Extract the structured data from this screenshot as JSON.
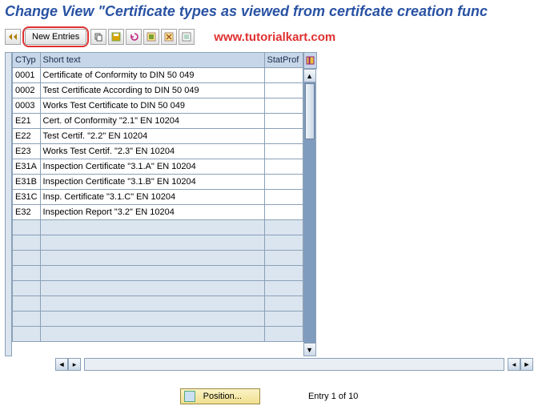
{
  "title": "Change View \"Certificate types as viewed from certifcate creation func",
  "toolbar": {
    "new_entries_label": "New Entries"
  },
  "watermark": "www.tutorialkart.com",
  "table": {
    "headers": {
      "ctyp": "CTyp",
      "short": "Short text",
      "stat": "StatProf"
    },
    "rows": [
      {
        "ctyp": "0001",
        "short": "Certificate of Conformity to DIN 50 049"
      },
      {
        "ctyp": "0002",
        "short": "Test Certificate According to DIN 50 049"
      },
      {
        "ctyp": "0003",
        "short": "Works Test Certificate  to DIN 50 049"
      },
      {
        "ctyp": "E21",
        "short": "Cert. of Conformity \"2.1\"  EN 10204"
      },
      {
        "ctyp": "E22",
        "short": "Test Certif. \"2.2\"        EN 10204"
      },
      {
        "ctyp": "E23",
        "short": "Works Test Certif. \"2.3\"   EN 10204"
      },
      {
        "ctyp": "E31A",
        "short": "Inspection Certificate \"3.1.A\"  EN 10204"
      },
      {
        "ctyp": "E31B",
        "short": "Inspection Certificate \"3.1.B\"  EN 10204"
      },
      {
        "ctyp": "E31C",
        "short": "Insp. Certificate \"3.1.C\"  EN 10204"
      },
      {
        "ctyp": "E32",
        "short": "Inspection Report \"3.2\"   EN 10204"
      }
    ],
    "empty_rows": 8
  },
  "footer": {
    "position_label": "Position...",
    "entry_text": "Entry 1 of 10"
  },
  "colors": {
    "title": "#2952a3",
    "header_bg": "#c7d6e8",
    "grid_border": "#8aa0b8",
    "empty_cell": "#dbe5ef",
    "watermark": "#e03030"
  }
}
